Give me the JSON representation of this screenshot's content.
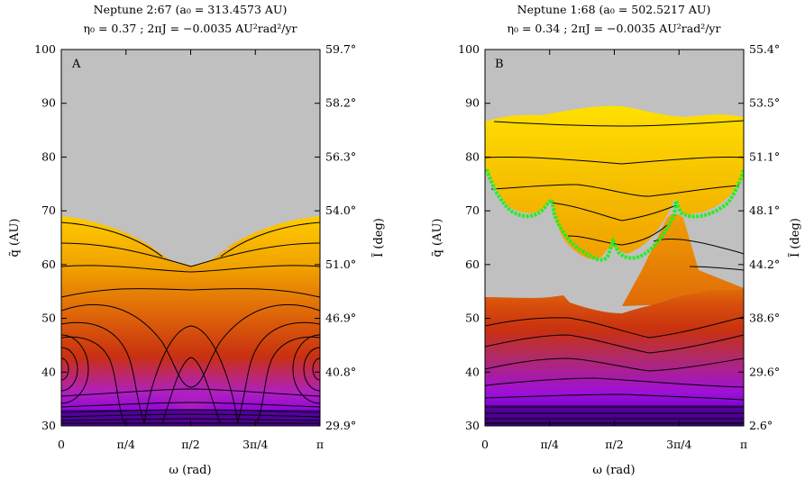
{
  "chart_data": [
    {
      "type": "heatmap",
      "panel_label": "A",
      "title_line1": "Neptune 2:67 (a₀ = 313.4573 AU)",
      "title_line2": "η₀ = 0.37  ;  2πJ = −0.0035 AU²rad²/yr",
      "xlabel": "ω (rad)",
      "ylabel": "q̃ (AU)",
      "y2label": "Ĩ (deg)",
      "xlim": [
        0,
        3.14159
      ],
      "ylim": [
        30,
        100
      ],
      "x_ticks": [
        "0",
        "π/4",
        "π/2",
        "3π/4",
        "π"
      ],
      "y_ticks": [
        30,
        40,
        50,
        60,
        70,
        80,
        90,
        100
      ],
      "y2_ticks": [
        "29.9°",
        "40.8°",
        "46.9°",
        "51.0°",
        "54.0°",
        "56.3°",
        "58.2°",
        "59.7°"
      ],
      "background_color": "#c0c0c0",
      "colormap": [
        "#3a0070",
        "#8a00e0",
        "#b020c0",
        "#c83010",
        "#e06a08",
        "#f2b000",
        "#ffe000"
      ],
      "boundary_q_at_0": 69,
      "boundary_q_at_pi_over_2": 60,
      "contour_levels": [
        30.3,
        30.8,
        31.5,
        32.4,
        33.5,
        35,
        43,
        47,
        50,
        52,
        55,
        59.5,
        63.5,
        67.5
      ],
      "island_centers_q": 40.5,
      "grid": false,
      "colorbar": false
    },
    {
      "type": "heatmap",
      "panel_label": "B",
      "title_line1": "Neptune 1:68 (a₀ = 502.5217 AU)",
      "title_line2": "η₀ = 0.34  ;  2πJ = −0.0035 AU²rad²/yr",
      "xlabel": "ω (rad)",
      "ylabel": "q̃ (AU)",
      "y2label": "Ĩ (deg)",
      "xlim": [
        0,
        3.14159
      ],
      "ylim": [
        30,
        100
      ],
      "x_ticks": [
        "0",
        "π/4",
        "π/2",
        "3π/4",
        "π"
      ],
      "y_ticks": [
        30,
        40,
        50,
        60,
        70,
        80,
        90,
        100
      ],
      "y2_ticks": [
        "2.6°",
        "29.6°",
        "38.6°",
        "44.2°",
        "48.1°",
        "51.1°",
        "53.5°",
        "55.4°"
      ],
      "background_color": "#c0c0c0",
      "colormap": [
        "#3a0070",
        "#8a00e0",
        "#b020c0",
        "#c83010",
        "#e06a08",
        "#f2b000",
        "#ffe000"
      ],
      "upper_region_q": [
        60,
        87
      ],
      "lower_region_q": [
        30,
        53
      ],
      "separatrix_color": "#22ee22",
      "contour_levels": [
        30.7,
        31.3,
        32,
        33,
        34.5,
        37,
        41,
        45.5,
        50,
        62,
        67,
        73,
        78,
        84
      ],
      "grid": false,
      "colorbar": false
    }
  ]
}
